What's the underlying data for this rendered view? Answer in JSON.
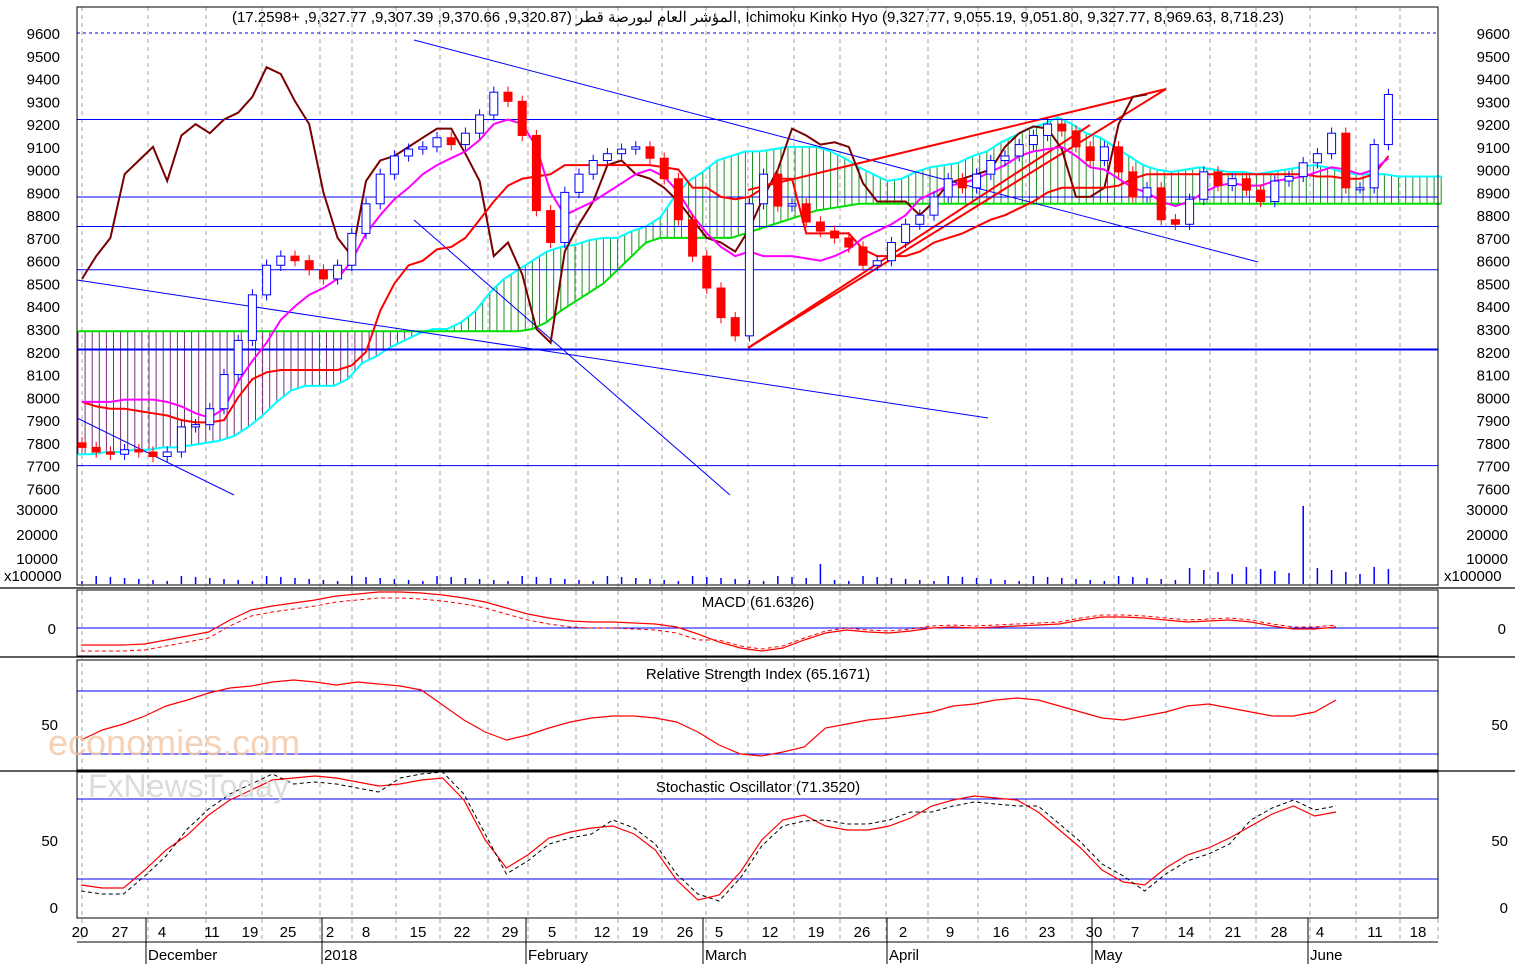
{
  "watermark": {
    "line1": "economies.com",
    "line2": "FxNewsToday"
  },
  "chart_data": [
    {
      "type": "candlestick",
      "title": "المؤشر العام لبورصة قطر (9,320.87, 9,370.66, 9,307.39, 9,327.77, +17.2598), Ichimoku Kinko Hyo (9,327.77, 9,055.19, 9,051.80, 9,327.77, 8,969.63, 8,718.23)",
      "ylim": [
        7550,
        9650
      ],
      "yticks": [
        9600,
        9500,
        9400,
        9300,
        9200,
        9100,
        9000,
        8900,
        8800,
        8700,
        8600,
        8500,
        8400,
        8300,
        8200,
        8100,
        8000,
        7900,
        7800,
        7700,
        7600
      ],
      "hlines": [
        9600,
        9220,
        8880,
        8750,
        8560,
        8210,
        7700
      ],
      "close": [
        7780,
        7760,
        7750,
        7770,
        7760,
        7740,
        7760,
        7870,
        7880,
        7950,
        8100,
        8250,
        8450,
        8580,
        8620,
        8600,
        8560,
        8520,
        8580,
        8720,
        8850,
        8980,
        9060,
        9090,
        9100,
        9140,
        9110,
        9160,
        9240,
        9340,
        9300,
        9150,
        8820,
        8680,
        8900,
        8980,
        9040,
        9070,
        9090,
        9100,
        9050,
        8960,
        8780,
        8620,
        8480,
        8350,
        8270,
        8850,
        8980,
        8840,
        8850,
        8770,
        8730,
        8700,
        8660,
        8580,
        8600,
        8680,
        8760,
        8800,
        8880,
        8960,
        8920,
        8980,
        9040,
        9060,
        9110,
        9150,
        9200,
        9170,
        9100,
        9040,
        9100,
        8990,
        8880,
        8920,
        8780,
        8760,
        8870,
        8990,
        8930,
        8960,
        8910,
        8860,
        8950,
        8970,
        9030,
        9070,
        9160,
        8920,
        8920,
        9110,
        9330
      ],
      "ichimoku": {
        "tenkan": [
          7980,
          7980,
          7980,
          7990,
          7990,
          7990,
          7980,
          7960,
          7930,
          7910,
          7950,
          8070,
          8160,
          8240,
          8340,
          8400,
          8450,
          8480,
          8520,
          8600,
          8720,
          8800,
          8870,
          8920,
          8980,
          9020,
          9050,
          9080,
          9130,
          9200,
          9220,
          9200,
          9100,
          8900,
          8800,
          8830,
          8860,
          8900,
          8940,
          8980,
          9000,
          8970,
          8900,
          8800,
          8720,
          8660,
          8620,
          8640,
          8620,
          8620,
          8620,
          8610,
          8600,
          8620,
          8650,
          8700,
          8730,
          8760,
          8800,
          8870,
          8900,
          8930,
          8940,
          8960,
          8990,
          9020,
          9060,
          9080,
          9090,
          9100,
          9060,
          9010,
          9000,
          8960,
          8920,
          8900,
          8860,
          8840,
          8860,
          8900,
          8930,
          8940,
          8930,
          8930,
          8950,
          8960,
          8970,
          8990,
          9010,
          9000,
          8980,
          9000,
          9050
        ],
        "kijun": [
          7980,
          7960,
          7950,
          7950,
          7940,
          7930,
          7920,
          7900,
          7890,
          7890,
          7900,
          8000,
          8080,
          8110,
          8120,
          8120,
          8120,
          8120,
          8120,
          8140,
          8200,
          8380,
          8500,
          8580,
          8600,
          8650,
          8660,
          8700,
          8780,
          8860,
          8930,
          8960,
          8970,
          8980,
          9020,
          9020,
          9020,
          9020,
          9020,
          9020,
          9020,
          9010,
          9000,
          8920,
          8920,
          8880,
          8870,
          8880,
          8920,
          8960,
          8960,
          8720,
          8720,
          8720,
          8720,
          8650,
          8620,
          8620,
          8620,
          8640,
          8680,
          8700,
          8720,
          8750,
          8780,
          8800,
          8830,
          8860,
          8900,
          8920,
          8920,
          8920,
          8920,
          8930,
          8960,
          8980,
          8980,
          8980,
          8980,
          8980,
          8980,
          8980,
          8980,
          8980,
          8980,
          8980,
          8980,
          8970,
          8970,
          8960,
          8960,
          8980,
          9060
        ],
        "chikou": [
          8520,
          8620,
          8700,
          8980,
          9040,
          9100,
          8950,
          9150,
          9200,
          9160,
          9220,
          9250,
          9320,
          9450,
          9420,
          9300,
          9200,
          8900,
          8700,
          8620,
          8950,
          9040,
          9060,
          9100,
          9140,
          9180,
          9180,
          9070,
          8950,
          8620,
          8680,
          8540,
          8300,
          8240,
          8640,
          8760,
          8860,
          9020,
          9040,
          8980,
          8960,
          8920,
          8860,
          8780,
          8700,
          8680,
          8640,
          8740,
          8880,
          9000,
          9180,
          9150,
          9110,
          9120,
          9100,
          8940,
          8860,
          8860,
          8860,
          8800,
          8860,
          8940,
          8960,
          8980,
          9000,
          9100,
          9160,
          9190,
          9180,
          9090,
          8880,
          8880,
          8920,
          9200,
          9320,
          9330
        ],
        "senkou_a": [
          7750,
          7750,
          7760,
          7760,
          7770,
          7770,
          7780,
          7780,
          7790,
          7800,
          7810,
          7830,
          7870,
          7920,
          7980,
          8030,
          8050,
          8050,
          8050,
          8080,
          8150,
          8180,
          8220,
          8250,
          8280,
          8300,
          8300,
          8330,
          8380,
          8460,
          8520,
          8560,
          8600,
          8640,
          8660,
          8670,
          8690,
          8700,
          8700,
          8730,
          8750,
          8790,
          8880,
          8950,
          8990,
          9040,
          9060,
          9080,
          9080,
          9090,
          9100,
          9100,
          9100,
          9080,
          9050,
          9010,
          8980,
          8950,
          8960,
          8990,
          9010,
          9020,
          9030,
          9060,
          9080,
          9120,
          9150,
          9180,
          9200,
          9230,
          9200,
          9160,
          9140,
          9100,
          9060,
          9020,
          9000,
          8990,
          9000,
          9010,
          9000,
          8990,
          8990,
          8980,
          8990,
          9000,
          9010,
          9020,
          9010,
          8990,
          8980,
          8980,
          8980,
          8970,
          8970,
          8970,
          8970
        ],
        "senkou_b": [
          8290,
          8290,
          8290,
          8290,
          8290,
          8290,
          8290,
          8290,
          8290,
          8290,
          8290,
          8290,
          8290,
          8290,
          8290,
          8290,
          8290,
          8290,
          8290,
          8290,
          8290,
          8290,
          8290,
          8290,
          8290,
          8290,
          8290,
          8290,
          8290,
          8290,
          8290,
          8290,
          8300,
          8330,
          8380,
          8420,
          8460,
          8500,
          8560,
          8620,
          8680,
          8700,
          8700,
          8700,
          8700,
          8700,
          8700,
          8720,
          8740,
          8760,
          8780,
          8800,
          8820,
          8830,
          8840,
          8850,
          8850,
          8850,
          8850,
          8850,
          8850,
          8850,
          8850,
          8850,
          8850,
          8850,
          8850,
          8850,
          8850,
          8850,
          8850,
          8850,
          8850,
          8850,
          8850,
          8850,
          8850,
          8850,
          8850,
          8850,
          8850,
          8850,
          8850,
          8850,
          8850,
          8850,
          8850,
          8850,
          8850,
          8850,
          8850,
          8850,
          8850,
          8850,
          8850,
          8850,
          8850
        ]
      },
      "volume": {
        "ylim": [
          0,
          40000
        ],
        "yticks": [
          30000,
          20000,
          10000
        ],
        "unit": "x100000"
      }
    },
    {
      "type": "line",
      "title": "MACD (61.6326)",
      "yticks": [
        0
      ]
    },
    {
      "type": "line",
      "title": "Relative Strength Index (65.1671)",
      "yticks": [
        50
      ]
    },
    {
      "type": "line",
      "title": "Stochastic Oscillator (71.3520)",
      "yticks": [
        50,
        0
      ]
    }
  ],
  "xaxis": {
    "day_ticks": [
      "20",
      "27",
      "4",
      "11",
      "19",
      "25",
      "2",
      "8",
      "15",
      "22",
      "29",
      "5",
      "12",
      "19",
      "26",
      "5",
      "12",
      "19",
      "26",
      "2",
      "9",
      "16",
      "23",
      "30",
      "7",
      "14",
      "21",
      "28",
      "4",
      "11",
      "18"
    ],
    "months": [
      "December",
      "2018",
      "February",
      "March",
      "April",
      "May",
      "June"
    ]
  },
  "colors": {
    "up": "#0000ff",
    "down": "#ff0000",
    "tenkan": "#ff00ff",
    "kijun": "#ff0000",
    "chikou": "#7a0000",
    "senkou_a": "#00ffff",
    "senkou_b": "#00e000",
    "trend": "#0000ff",
    "grid": "#808080"
  }
}
